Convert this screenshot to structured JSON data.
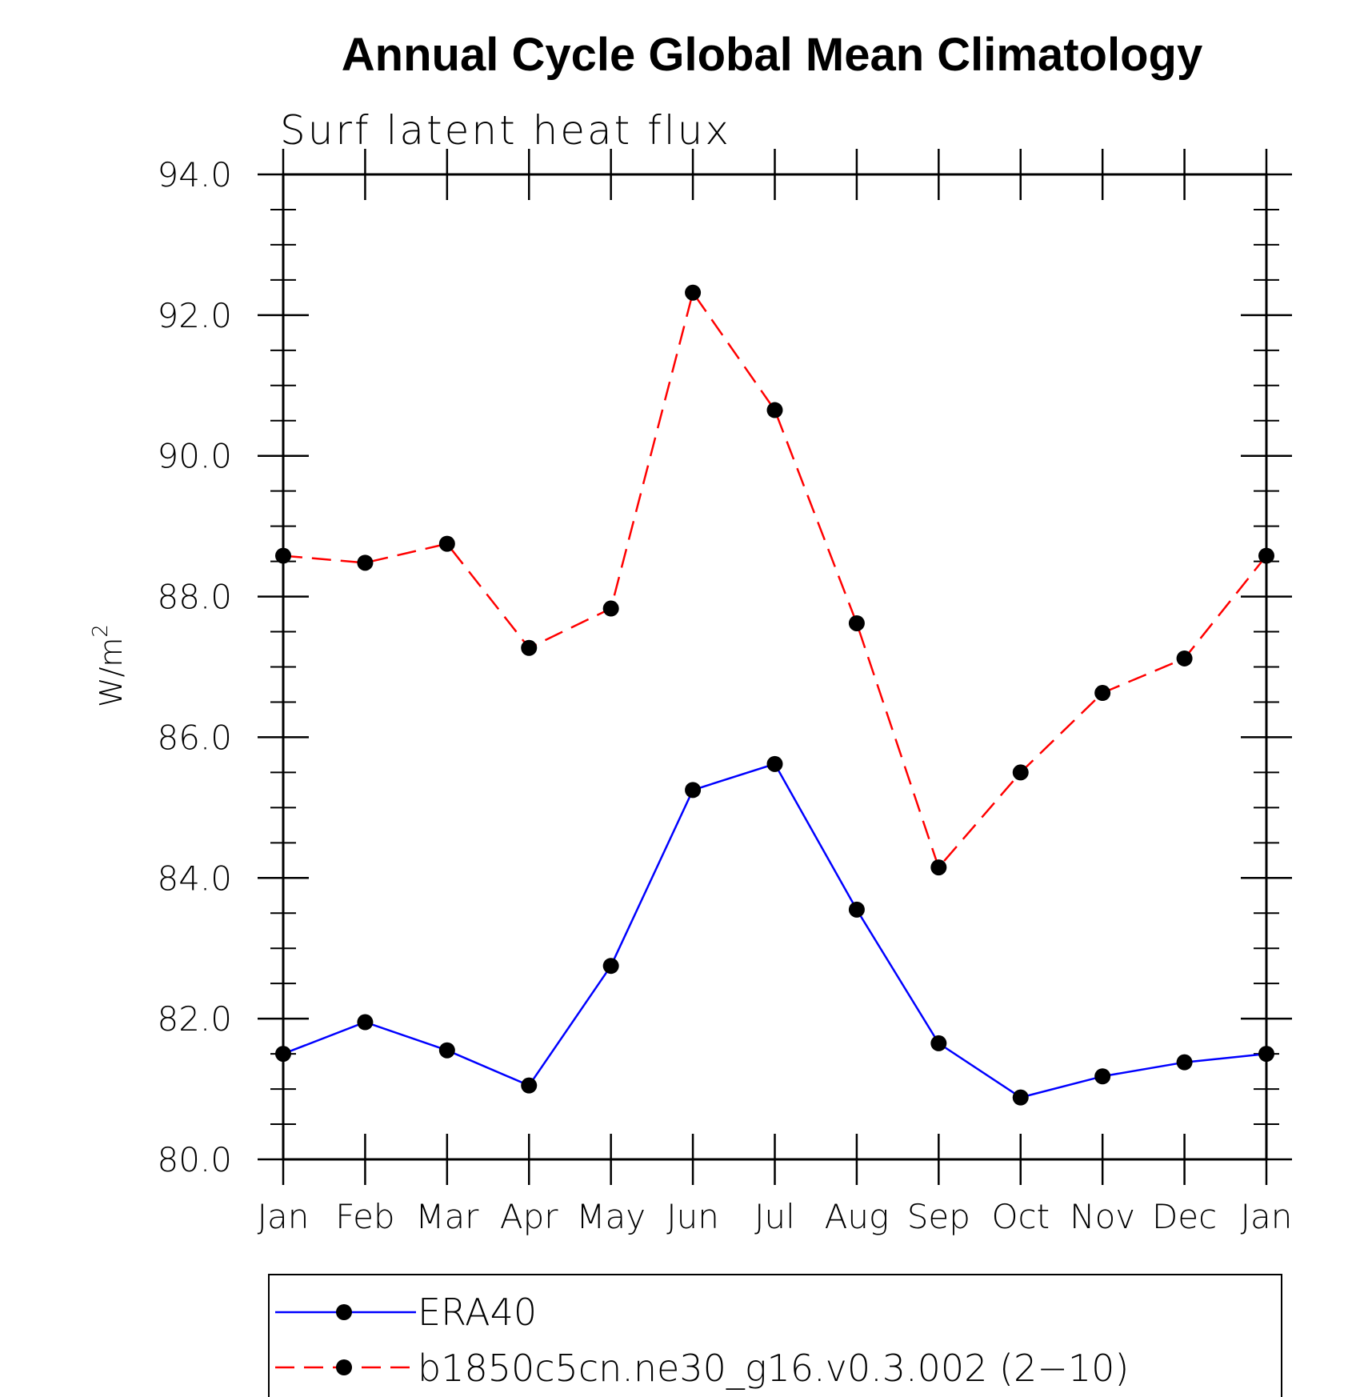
{
  "chart_data": {
    "type": "line",
    "title": "Annual Cycle Global Mean Climatology",
    "subtitle": "Surf latent heat flux",
    "ylabel": "W/m",
    "ylabel_superscript": "2",
    "xlabel": "",
    "categories": [
      "Jan",
      "Feb",
      "Mar",
      "Apr",
      "May",
      "Jun",
      "Jul",
      "Aug",
      "Sep",
      "Oct",
      "Nov",
      "Dec",
      "Jan"
    ],
    "ylim": [
      80.0,
      94.0
    ],
    "yticks": [
      "80.0",
      "82.0",
      "84.0",
      "86.0",
      "88.0",
      "90.0",
      "92.0",
      "94.0"
    ],
    "grid": false,
    "legend_position": "bottom",
    "series": [
      {
        "name": "ERA40",
        "color": "#0000ff",
        "dash": "solid",
        "marker": "filled-circle",
        "values": [
          81.5,
          81.95,
          81.55,
          81.05,
          82.75,
          85.25,
          85.62,
          83.55,
          81.65,
          80.88,
          81.18,
          81.38,
          81.5
        ]
      },
      {
        "name": "b1850c5cn.ne30_g16.v0.3.002 (2−10)",
        "color": "#ff0000",
        "dash": "dashed",
        "marker": "filled-circle",
        "values": [
          88.58,
          88.48,
          88.75,
          87.27,
          87.83,
          92.32,
          90.65,
          87.62,
          84.15,
          85.5,
          86.63,
          87.12,
          88.58
        ]
      }
    ]
  }
}
